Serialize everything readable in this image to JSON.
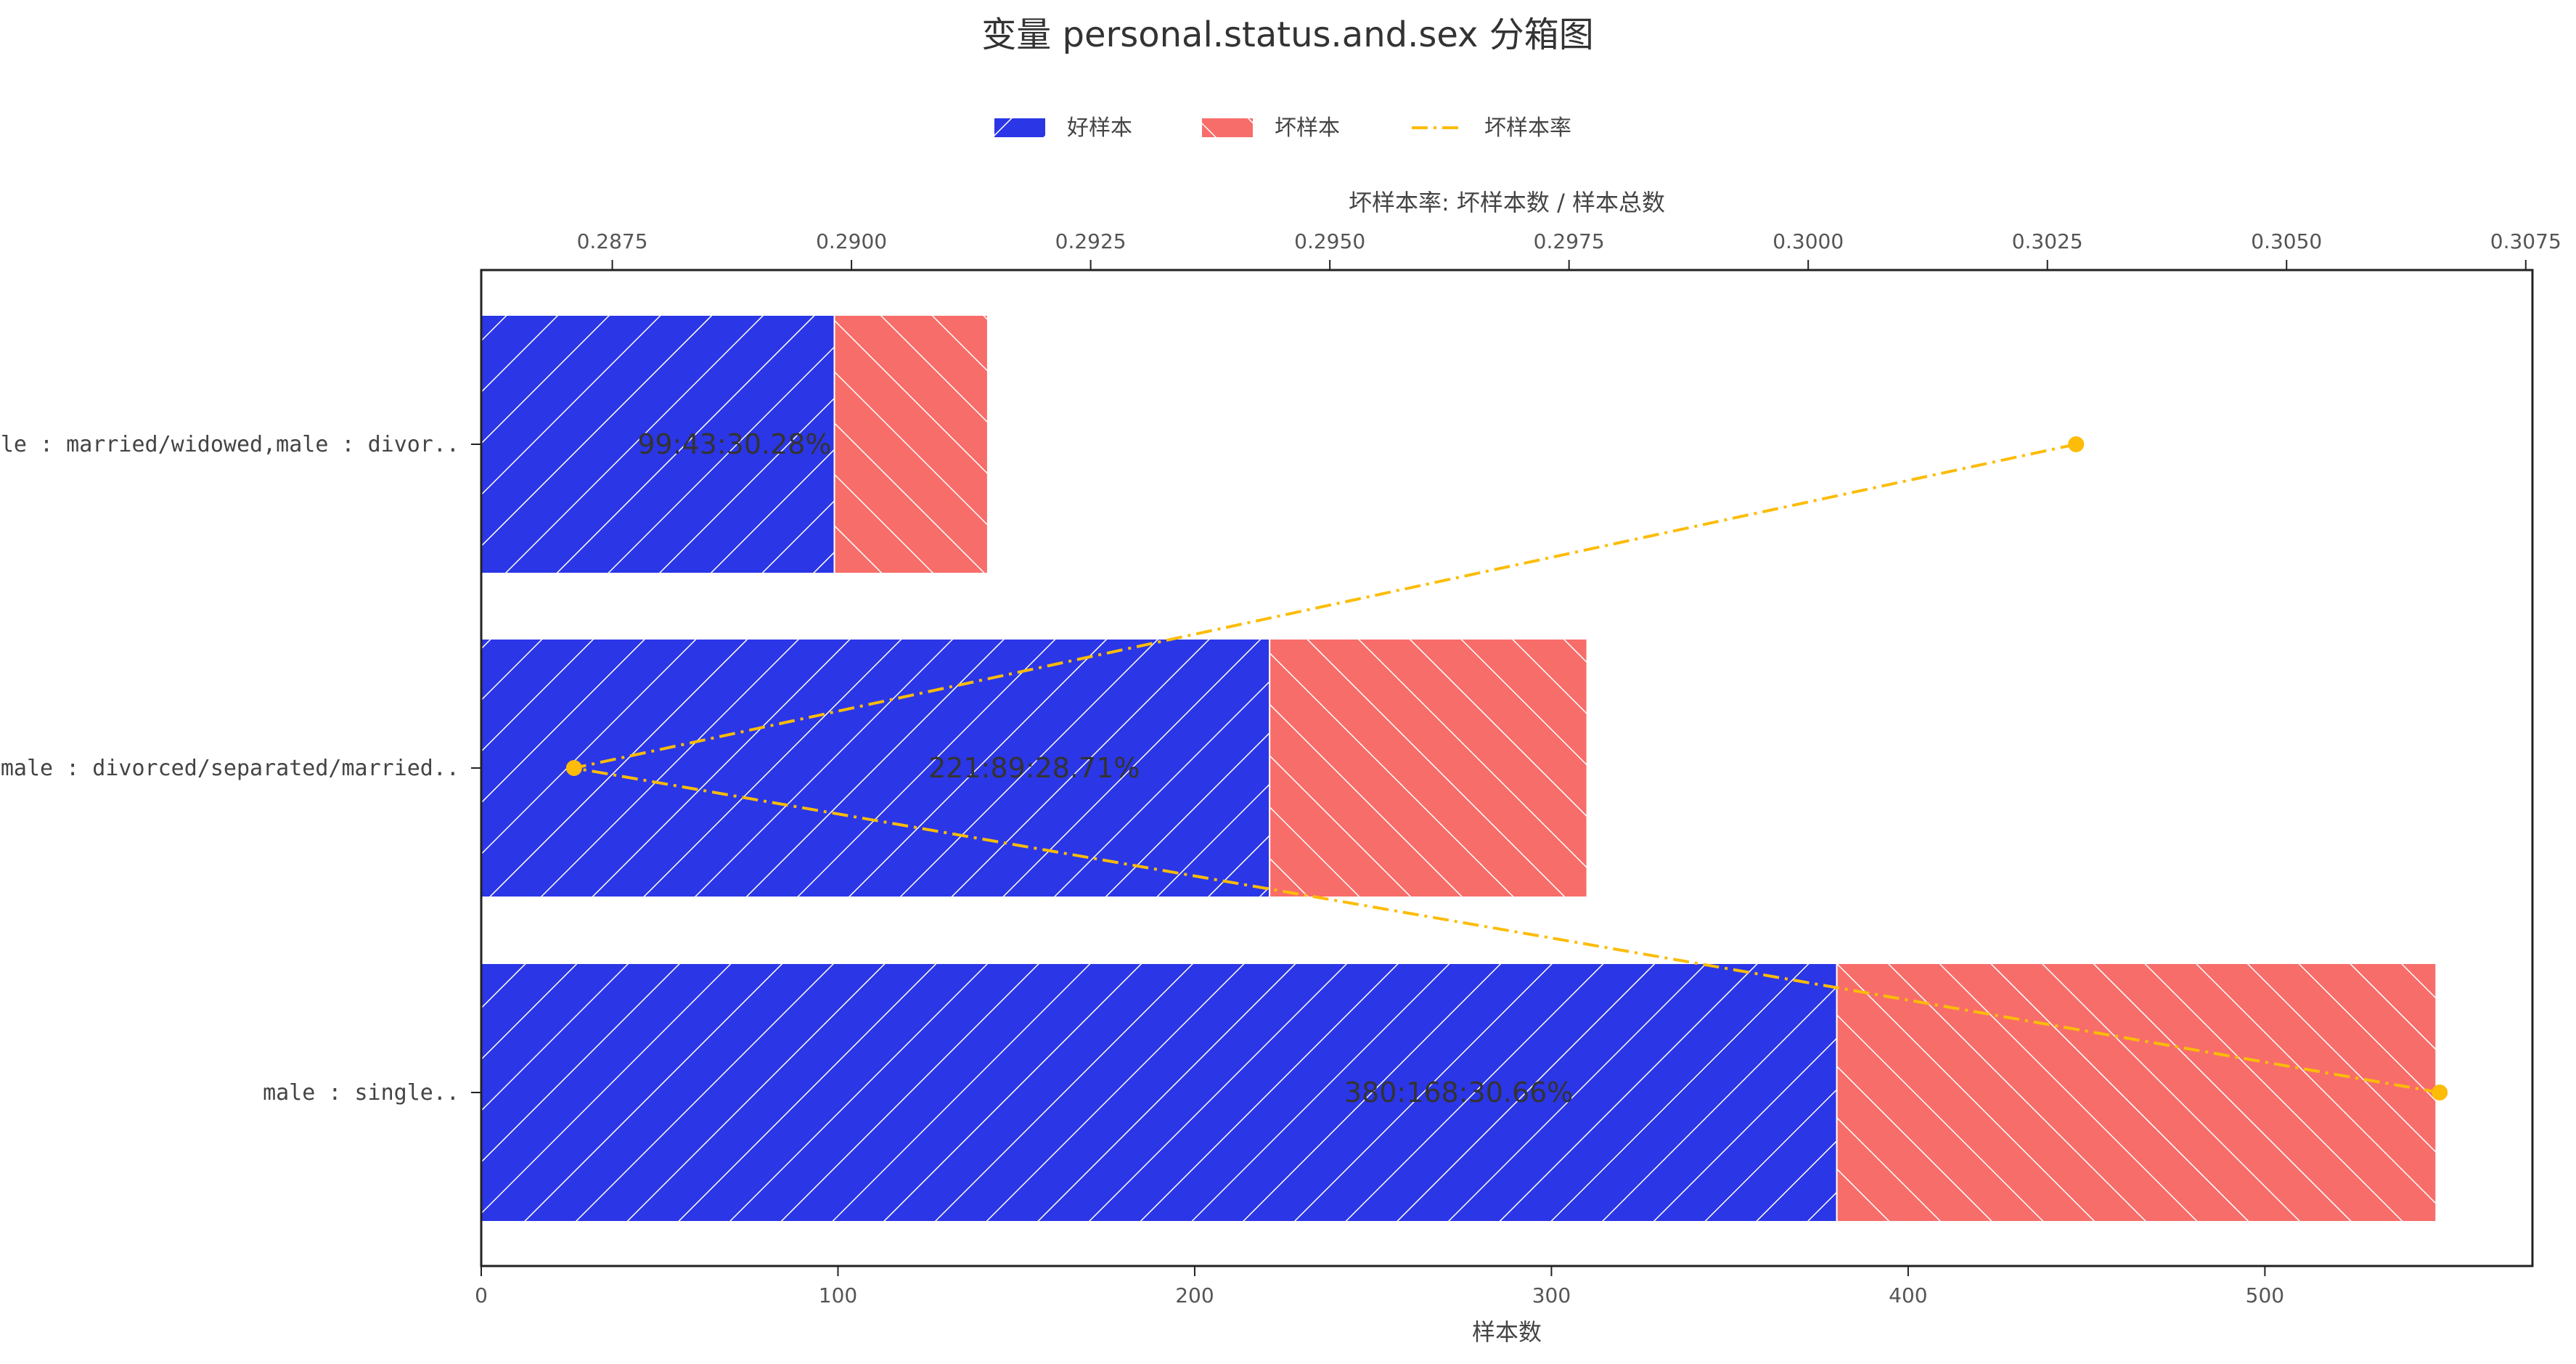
{
  "chart_data": {
    "type": "bar",
    "orientation": "horizontal",
    "stacked": true,
    "title": "变量 personal.status.and.sex 分箱图",
    "xlabel_bottom": "样本数",
    "xlabel_top": "坏样本率: 坏样本数 / 样本总数",
    "categories": [
      "male : married/widowed,male : divor..",
      "female : divorced/separated/married..",
      "male : single.."
    ],
    "series": [
      {
        "name": "好样本",
        "values": [
          99,
          221,
          380
        ],
        "color": "#2b36e6",
        "hatch": "forward-diagonal"
      },
      {
        "name": "坏样本",
        "values": [
          43,
          89,
          168
        ],
        "color": "#f76d6a",
        "hatch": "back-diagonal"
      }
    ],
    "bad_rate": {
      "name": "坏样本率",
      "values": [
        0.3028,
        0.2871,
        0.3066
      ],
      "color": "#fcbc07",
      "line_style": "dash-dot"
    },
    "bar_labels": [
      "99:43:30.28%",
      "221:89:28.71%",
      "380:168:30.66%"
    ],
    "bottom_axis": {
      "ticks": [
        0,
        100,
        200,
        300,
        400,
        500
      ],
      "range": [
        0,
        575
      ]
    },
    "top_axis": {
      "ticks": [
        0.2875,
        0.29,
        0.2925,
        0.295,
        0.2975,
        0.3,
        0.3025,
        0.305,
        0.3075
      ],
      "tick_labels": [
        "0.2875",
        "0.2900",
        "0.2925",
        "0.2950",
        "0.2975",
        "0.3000",
        "0.3025",
        "0.3050",
        "0.3075"
      ],
      "range": [
        0.28613,
        0.30757
      ]
    },
    "legend": {
      "placement": "top-center",
      "items": [
        {
          "label": "好样本",
          "kind": "bar",
          "color": "#2b36e6",
          "hatch": "forward-diagonal"
        },
        {
          "label": "坏样本",
          "kind": "bar",
          "color": "#f76d6a",
          "hatch": "back-diagonal"
        },
        {
          "label": "坏样本率",
          "kind": "line",
          "color": "#fcbc07"
        }
      ]
    },
    "grid": false
  }
}
